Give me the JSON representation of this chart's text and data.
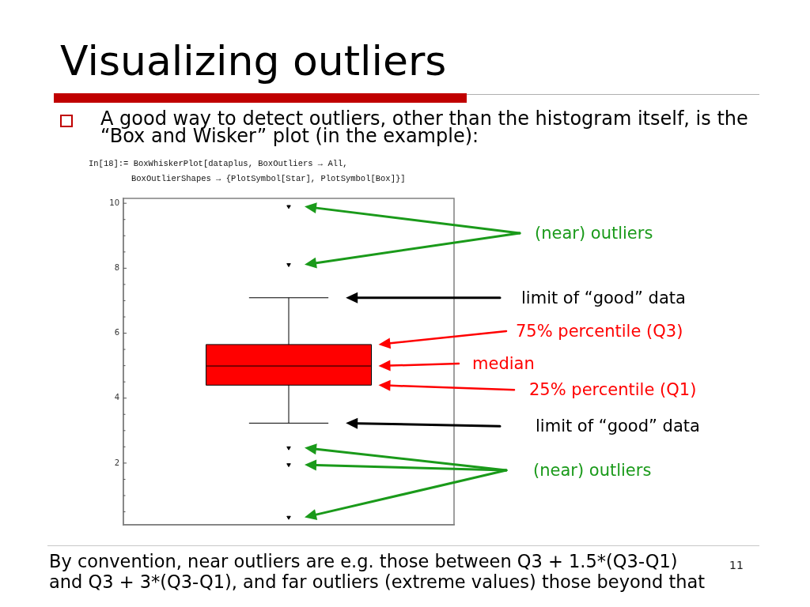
{
  "chart_data": {
    "type": "box",
    "title": "Visualizing outliers",
    "subtitle": "A good way to detect outliers, other than the histogram itself, is the “Box and Wisker” plot (in the example):",
    "categories": [
      null
    ],
    "color": "#ff0000",
    "boxes": [
      {
        "low": 3.23,
        "q1": 4.4,
        "median": 4.99,
        "q3": 5.65,
        "high": 7.09,
        "outliers": [
          9.9,
          8.11,
          2.47,
          1.95,
          0.33
        ]
      }
    ],
    "ylim": [
      0.1,
      10.15
    ],
    "yticks": [
      {
        "value": 0.5,
        "label": null
      },
      {
        "value": 1,
        "label": null
      },
      {
        "value": 1.5,
        "label": null
      },
      {
        "value": 2,
        "label": "2"
      },
      {
        "value": 2.5,
        "label": null
      },
      {
        "value": 3,
        "label": null
      },
      {
        "value": 3.5,
        "label": null
      },
      {
        "value": 4,
        "label": "4"
      },
      {
        "value": 4.5,
        "label": null
      },
      {
        "value": 5,
        "label": null
      },
      {
        "value": 5.5,
        "label": null
      },
      {
        "value": 6,
        "label": "6"
      },
      {
        "value": 6.5,
        "label": null
      },
      {
        "value": 7,
        "label": null
      },
      {
        "value": 7.5,
        "label": null
      },
      {
        "value": 8,
        "label": "8"
      },
      {
        "value": 8.5,
        "label": null
      },
      {
        "value": 9,
        "label": null
      },
      {
        "value": 9.5,
        "label": null
      },
      {
        "value": 10,
        "label": "10"
      }
    ],
    "tick_labels": "y",
    "annotations": [
      "In[18]:= BoxWhiskerPlot[dataplus, BoxOutliers → All,",
      "BoxOutlierShapes → {PlotSymbol[Star], PlotSymbol[Box]}]",
      "(near) outliers",
      "limit of “good” data",
      "75% percentile (Q3)",
      "median",
      "25% percentile (Q1)",
      "limit of “good” data",
      "(near) outliers",
      "By convention, near outliers are e.g. those between Q3 + 1.5*(Q3-Q1) and Q3 + 3*(Q3-Q1), and far outliers (extreme values) those beyond that",
      "11"
    ]
  }
}
